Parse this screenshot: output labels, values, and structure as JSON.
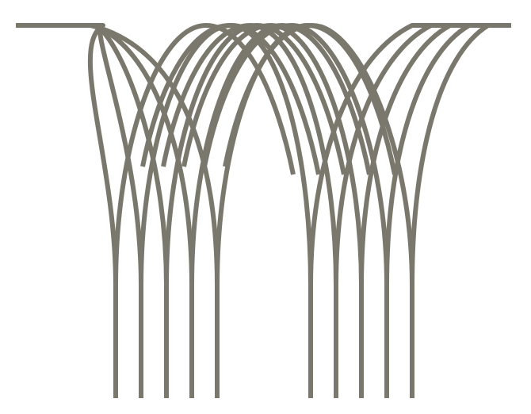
{
  "artwork": {
    "description_free": true,
    "stroke_color": "#7a786c",
    "background_color": "#ffffff",
    "left_strand_count": 5,
    "right_strand_count": 5
  }
}
